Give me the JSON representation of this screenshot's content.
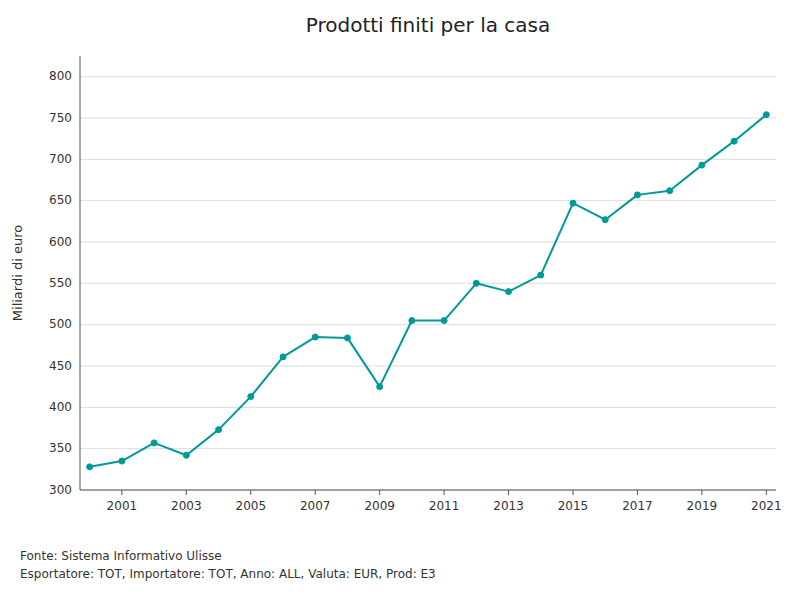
{
  "chart_data": {
    "type": "line",
    "title": "Prodotti finiti per la casa",
    "y_label": "Miliardi di euro",
    "annotations": [
      "Fonte: Sistema Informativo Ulisse",
      "Esportatore: TOT, Importatore: TOT, Anno: ALL, Valuta: EUR, Prod: E3"
    ],
    "x": [
      2000,
      2001,
      2002,
      2003,
      2004,
      2005,
      2006,
      2007,
      2008,
      2009,
      2010,
      2011,
      2012,
      2013,
      2014,
      2015,
      2016,
      2017,
      2018,
      2019,
      2020,
      2021
    ],
    "values": [
      328,
      335,
      357,
      342,
      373,
      413,
      461,
      485,
      484,
      425,
      505,
      505,
      550,
      540,
      560,
      647,
      627,
      657,
      662,
      693,
      722,
      754
    ],
    "color": "#009999",
    "marker": "circle",
    "xlim": [
      1999.7,
      2021.3
    ],
    "xticks": [
      2001,
      2003,
      2005,
      2007,
      2009,
      2011,
      2013,
      2015,
      2017,
      2019,
      2021
    ],
    "ylim": [
      300,
      825
    ],
    "yticks": [
      300,
      350,
      400,
      450,
      500,
      550,
      600,
      650,
      700,
      750,
      800
    ],
    "grid": true
  }
}
